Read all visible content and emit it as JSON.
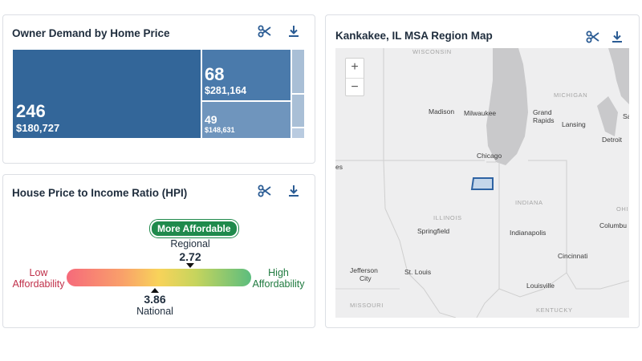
{
  "demand_card": {
    "title": "Owner Demand by Home Price",
    "tiles": [
      {
        "count": "246",
        "price": "$180,727"
      },
      {
        "count": "68",
        "price": "$281,164"
      },
      {
        "count": "49",
        "price": "$148,631"
      }
    ]
  },
  "hpi_card": {
    "title": "House Price to Income Ratio (HPI)",
    "badge": "More Affordable",
    "regional_label": "Regional",
    "regional_value": "2.72",
    "national_value": "3.86",
    "national_label": "National",
    "low_line1": "Low",
    "low_line2": "Affordability",
    "high_line1": "High",
    "high_line2": "Affordability"
  },
  "map_card": {
    "title": "Kankakee, IL MSA Region Map",
    "zoom_in": "+",
    "zoom_out": "−",
    "states": {
      "wisconsin": "WISCONSIN",
      "michigan": "MICHIGAN",
      "illinois": "ILLINOIS",
      "indiana": "INDIANA",
      "ohio": "OHI",
      "missouri": "MISSOURI",
      "kentucky": "KENTUCKY"
    },
    "cities": {
      "madison": "Madison",
      "milwaukee": "Milwaukee",
      "grand1": "Grand",
      "grand2": "Rapids",
      "lansing": "Lansing",
      "sa": "Sa",
      "detroit": "Detroit",
      "chicago": "Chicago",
      "es": "es",
      "springfield": "Springfield",
      "indianapolis": "Indianapolis",
      "columbus": "Columbu",
      "cincinnati": "Cincinnati",
      "jefferson1": "Jefferson",
      "jefferson2": "City",
      "stlouis": "St. Louis",
      "louisville": "Louisville"
    }
  },
  "colors": {
    "treemap_dark": "#336699",
    "treemap_mid": "#4a7aab",
    "treemap_light": "#6f95bd",
    "treemap_pale": "#a9bfd6",
    "badge_green": "#1f8a4c",
    "low_red": "#c0304a",
    "high_green": "#1f7a3f",
    "msa_outline": "#2e63a3"
  }
}
